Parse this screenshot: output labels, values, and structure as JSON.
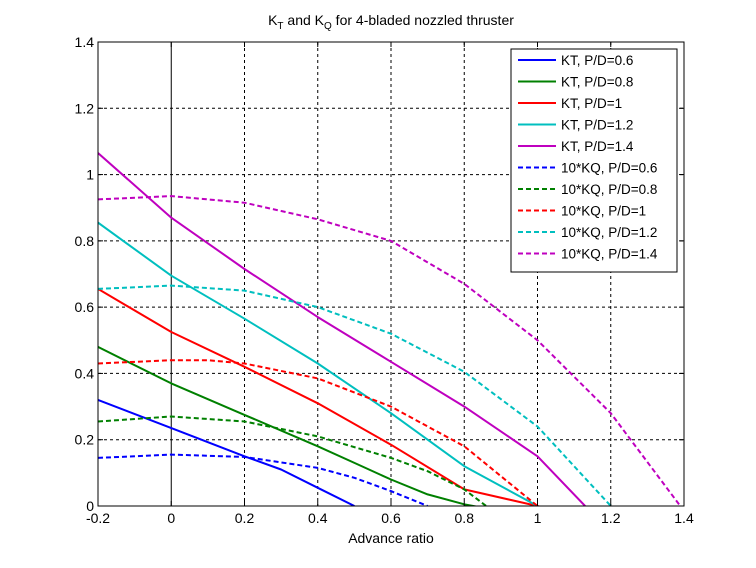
{
  "chart_data": {
    "type": "line",
    "title": {
      "parts": [
        {
          "text": "K",
          "sub": false
        },
        {
          "text": "T",
          "sub": true
        },
        {
          "text": " and K",
          "sub": false
        },
        {
          "text": "Q",
          "sub": true
        },
        {
          "text": " for 4-bladed nozzled thruster",
          "sub": false
        }
      ]
    },
    "xlabel": "Advance ratio",
    "ylabel": "",
    "xlim": [
      -0.2,
      1.4
    ],
    "ylim": [
      0,
      1.4
    ],
    "xticks": [
      -0.2,
      0,
      0.2,
      0.4,
      0.6,
      0.8,
      1,
      1.2,
      1.4
    ],
    "yticks": [
      0,
      0.2,
      0.4,
      0.6,
      0.8,
      1,
      1.2,
      1.4
    ],
    "xtick_labels": [
      "-0.2",
      "0",
      "0.2",
      "0.4",
      "0.6",
      "0.8",
      "1",
      "1.2",
      "1.4"
    ],
    "ytick_labels": [
      "0",
      "0.2",
      "0.4",
      "0.6",
      "0.8",
      "1",
      "1.2",
      "1.4"
    ],
    "grid": true,
    "zero_lines": true,
    "legend_position": "top-right",
    "series": [
      {
        "name": "KT, P/D=0.6",
        "color": "#0000ff",
        "style": "solid",
        "x": [
          -0.2,
          0,
          0.2,
          0.3,
          0.4,
          0.5
        ],
        "y": [
          0.32,
          0.235,
          0.15,
          0.11,
          0.055,
          0
        ]
      },
      {
        "name": "KT, P/D=0.8",
        "color": "#008000",
        "style": "solid",
        "x": [
          -0.2,
          0,
          0.2,
          0.4,
          0.5,
          0.6,
          0.7,
          0.8,
          0.85
        ],
        "y": [
          0.48,
          0.37,
          0.275,
          0.18,
          0.13,
          0.08,
          0.035,
          0.005,
          -0.005
        ]
      },
      {
        "name": "KT, P/D=1",
        "color": "#ff0000",
        "style": "solid",
        "x": [
          -0.2,
          0,
          0.2,
          0.4,
          0.6,
          0.8,
          1.02
        ],
        "y": [
          0.655,
          0.525,
          0.42,
          0.31,
          0.185,
          0.05,
          -0.005
        ]
      },
      {
        "name": "KT, P/D=1.2",
        "color": "#00bfbf",
        "style": "solid",
        "x": [
          -0.2,
          0,
          0.2,
          0.4,
          0.6,
          0.8,
          1.0
        ],
        "y": [
          0.855,
          0.695,
          0.565,
          0.43,
          0.28,
          0.12,
          0
        ]
      },
      {
        "name": "KT, P/D=1.4",
        "color": "#bf00bf",
        "style": "solid",
        "x": [
          -0.2,
          0,
          0.2,
          0.4,
          0.6,
          0.8,
          1.0,
          1.13
        ],
        "y": [
          1.065,
          0.87,
          0.715,
          0.57,
          0.435,
          0.3,
          0.15,
          0
        ]
      },
      {
        "name": "10*KQ, P/D=0.6",
        "color": "#0000ff",
        "style": "dashed",
        "x": [
          -0.2,
          0,
          0.2,
          0.4,
          0.5,
          0.6,
          0.7
        ],
        "y": [
          0.145,
          0.155,
          0.148,
          0.115,
          0.085,
          0.045,
          0
        ]
      },
      {
        "name": "10*KQ, P/D=0.8",
        "color": "#008000",
        "style": "dashed",
        "x": [
          -0.2,
          0,
          0.2,
          0.4,
          0.6,
          0.7,
          0.8,
          0.86
        ],
        "y": [
          0.255,
          0.27,
          0.255,
          0.21,
          0.145,
          0.105,
          0.05,
          0
        ]
      },
      {
        "name": "10*KQ, P/D=1",
        "color": "#ff0000",
        "style": "dashed",
        "x": [
          -0.2,
          0,
          0.1,
          0.2,
          0.4,
          0.6,
          0.8,
          1.0
        ],
        "y": [
          0.43,
          0.44,
          0.44,
          0.43,
          0.385,
          0.3,
          0.18,
          0
        ]
      },
      {
        "name": "10*KQ, P/D=1.2",
        "color": "#00bfbf",
        "style": "dashed",
        "x": [
          -0.2,
          0,
          0.2,
          0.4,
          0.6,
          0.8,
          1.0,
          1.2
        ],
        "y": [
          0.655,
          0.665,
          0.65,
          0.6,
          0.52,
          0.405,
          0.24,
          0
        ]
      },
      {
        "name": "10*KQ, P/D=1.4",
        "color": "#bf00bf",
        "style": "dashed",
        "x": [
          -0.2,
          0,
          0.2,
          0.4,
          0.6,
          0.8,
          1.0,
          1.2,
          1.39
        ],
        "y": [
          0.925,
          0.935,
          0.915,
          0.865,
          0.8,
          0.67,
          0.5,
          0.28,
          0
        ]
      }
    ]
  }
}
